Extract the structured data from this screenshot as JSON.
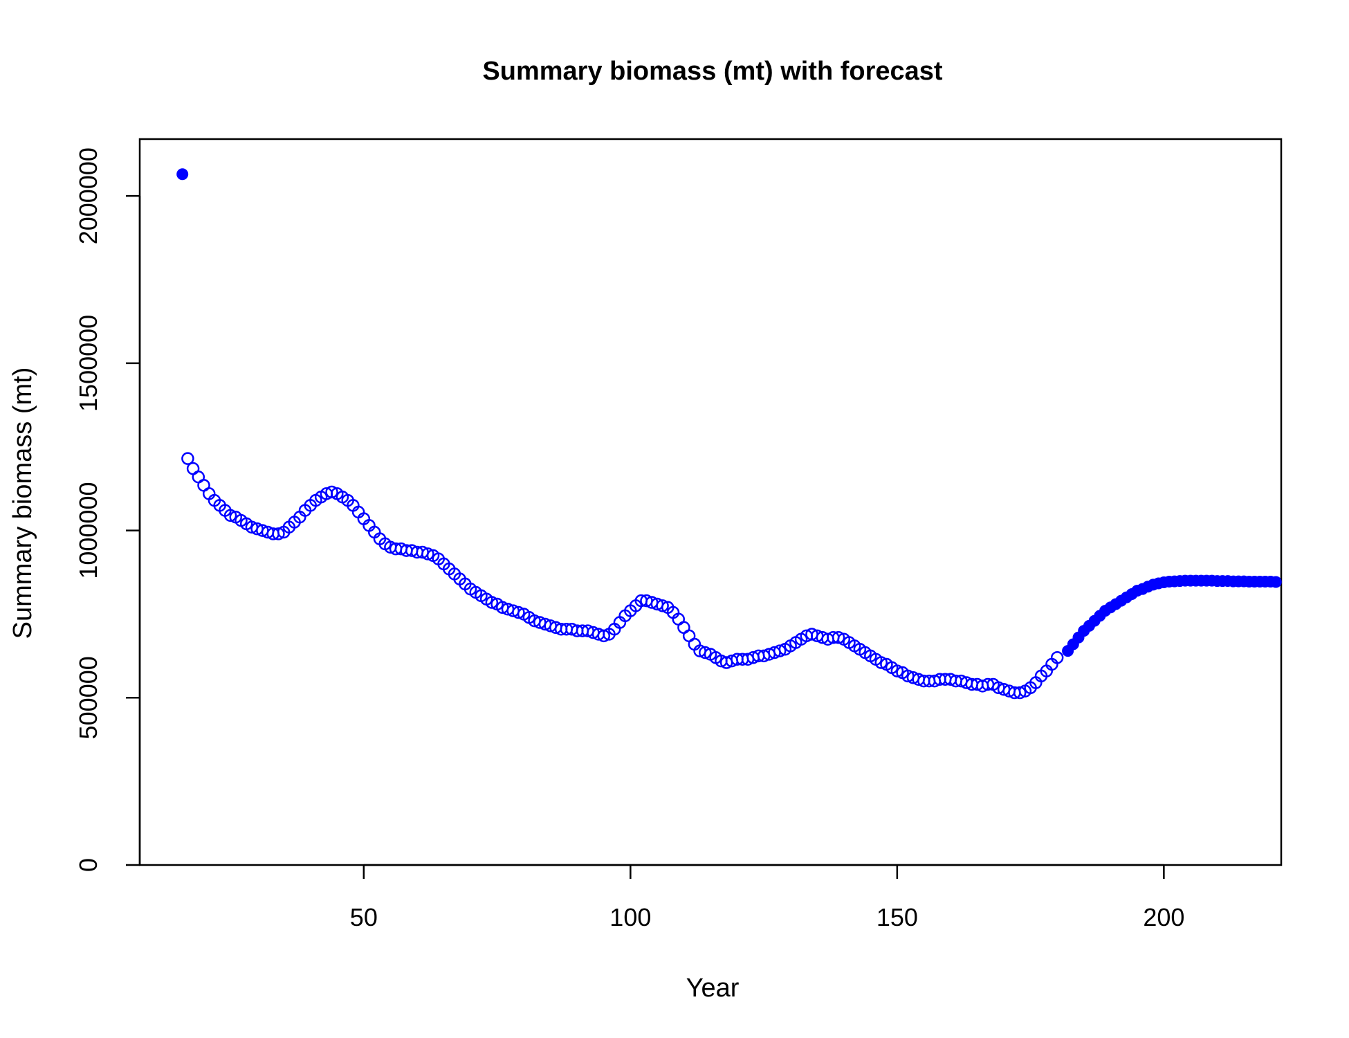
{
  "chart_data": {
    "type": "scatter",
    "title": "Summary biomass (mt) with forecast",
    "xlabel": "Year",
    "ylabel": "Summary biomass (mt)",
    "xlim": [
      8,
      222
    ],
    "ylim": [
      0,
      2170000
    ],
    "x_ticks": [
      50,
      100,
      150,
      200
    ],
    "y_ticks": [
      0,
      500000,
      1000000,
      1500000,
      2000000
    ],
    "x_tick_labels": [
      "50",
      "100",
      "150",
      "200"
    ],
    "y_tick_labels": [
      "0",
      "500000",
      "1000000",
      "1500000",
      "2000000"
    ],
    "grid": false,
    "legend": "none",
    "point_color": "#0000ff",
    "series": [
      {
        "marker": "filled-circle",
        "x": [
          16
        ],
        "y": [
          2065000
        ]
      },
      {
        "marker": "open-circle",
        "x_start": 17,
        "x_step": 1,
        "y": [
          1215000,
          1185000,
          1160000,
          1135000,
          1110000,
          1090000,
          1075000,
          1060000,
          1045000,
          1040000,
          1030000,
          1020000,
          1010000,
          1005000,
          1000000,
          995000,
          990000,
          990000,
          995000,
          1010000,
          1025000,
          1040000,
          1060000,
          1075000,
          1090000,
          1100000,
          1110000,
          1115000,
          1110000,
          1100000,
          1090000,
          1075000,
          1055000,
          1035000,
          1015000,
          995000,
          975000,
          960000,
          950000,
          945000,
          945000,
          940000,
          940000,
          935000,
          935000,
          930000,
          925000,
          915000,
          900000,
          885000,
          870000,
          855000,
          840000,
          825000,
          815000,
          805000,
          795000,
          785000,
          780000,
          770000,
          765000,
          760000,
          755000,
          750000,
          740000,
          730000,
          725000,
          720000,
          715000,
          710000,
          705000,
          705000,
          705000,
          700000,
          700000,
          700000,
          695000,
          690000,
          685000,
          690000,
          705000,
          725000,
          745000,
          760000,
          775000,
          790000,
          790000,
          785000,
          780000,
          775000,
          770000,
          755000,
          735000,
          710000,
          685000,
          660000,
          640000,
          635000,
          630000,
          620000,
          610000,
          605000,
          610000,
          615000,
          615000,
          615000,
          620000,
          625000,
          625000,
          630000,
          635000,
          640000,
          645000,
          655000,
          665000,
          675000,
          685000,
          690000,
          685000,
          680000,
          675000,
          680000,
          680000,
          675000,
          665000,
          655000,
          645000,
          635000,
          625000,
          615000,
          605000,
          600000,
          590000,
          580000,
          575000,
          565000,
          560000,
          555000,
          550000,
          550000,
          550000,
          555000,
          555000,
          555000,
          550000,
          550000,
          545000,
          540000,
          540000,
          535000,
          540000,
          540000,
          530000,
          525000,
          520000,
          515000,
          515000,
          520000,
          530000,
          545000,
          565000,
          580000,
          600000,
          620000
        ]
      },
      {
        "marker": "filled-circle",
        "x_start": 182,
        "x_step": 1,
        "y": [
          640000,
          660000,
          680000,
          700000,
          715000,
          730000,
          745000,
          760000,
          770000,
          780000,
          790000,
          800000,
          810000,
          820000,
          825000,
          832000,
          838000,
          842000,
          845000,
          847000,
          848000,
          849000,
          850000,
          850000,
          850000,
          850000,
          850000,
          850000,
          849000,
          849000,
          849000,
          848000,
          848000,
          848000,
          847000,
          847000,
          847000,
          847000,
          847000,
          846000
        ]
      }
    ]
  }
}
